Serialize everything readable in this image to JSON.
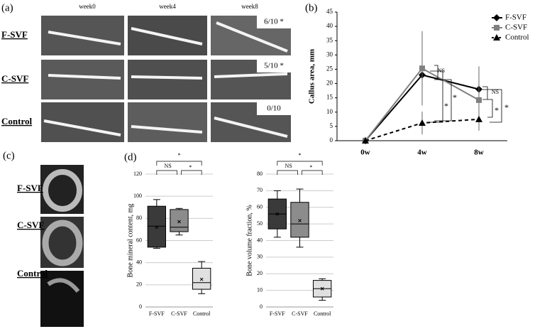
{
  "panel_a": {
    "label": "(a)",
    "columns": [
      "week0",
      "week4",
      "week8"
    ],
    "rows": [
      {
        "label": "F-SVF",
        "score": "6/10 *"
      },
      {
        "label": "C-SVF",
        "score": "5/10 *"
      },
      {
        "label": "Control",
        "score": "0/10"
      }
    ]
  },
  "panel_b_label": "(b)",
  "panel_c": {
    "label": "(c)",
    "rows": [
      "F-SVF",
      "C-SVF",
      "Control"
    ]
  },
  "panel_d_label": "(d)",
  "chart_data": [
    {
      "type": "line",
      "y_label": "Callus area, mm",
      "categories": [
        "0w",
        "4w",
        "8w"
      ],
      "ylim": [
        0,
        45
      ],
      "yticks": [
        0,
        5,
        10,
        15,
        20,
        25,
        30,
        35,
        40,
        45
      ],
      "series": [
        {
          "name": "F-SVF",
          "color": "#000000",
          "marker": "diamond",
          "dashed": false,
          "values": [
            0,
            23,
            18
          ],
          "errors": [
            0,
            10,
            8
          ]
        },
        {
          "name": "C-SVF",
          "color": "#808080",
          "marker": "square",
          "dashed": false,
          "values": [
            0,
            25.3,
            14.2
          ],
          "errors": [
            0,
            13,
            6
          ]
        },
        {
          "name": "Control",
          "color": "#000000",
          "marker": "triangle",
          "dashed": true,
          "values": [
            0,
            6.2,
            7.5
          ],
          "errors": [
            0,
            4,
            4
          ]
        }
      ],
      "annotations": [
        "NS",
        "*",
        "*",
        "NS",
        "*",
        "*"
      ]
    },
    {
      "type": "box",
      "y_label": "Bone mineral content, mg",
      "categories": [
        "F-SVF",
        "C-SVF",
        "Control"
      ],
      "ylim": [
        0,
        120
      ],
      "yticks": [
        0,
        20,
        40,
        60,
        80,
        100,
        120
      ],
      "grid": true,
      "colors": [
        "#3a3a3a",
        "#8c8c8c",
        "#e0e0e0"
      ],
      "boxes": [
        {
          "min": 53,
          "q1": 54,
          "median": 73,
          "q3": 91,
          "max": 97,
          "mean": 72
        },
        {
          "min": 65,
          "q1": 68,
          "median": 72,
          "q3": 88,
          "max": 89,
          "mean": 77
        },
        {
          "min": 12,
          "q1": 16,
          "median": 22,
          "q3": 35,
          "max": 41,
          "mean": 25
        }
      ],
      "annotations": [
        "*",
        "NS",
        "*"
      ]
    },
    {
      "type": "box",
      "y_label": "Bone volume fraction, %",
      "categories": [
        "F-SVF",
        "C-SVF",
        "Control"
      ],
      "ylim": [
        0,
        80
      ],
      "yticks": [
        0,
        10,
        20,
        30,
        40,
        50,
        60,
        70,
        80
      ],
      "grid": true,
      "colors": [
        "#3a3a3a",
        "#8c8c8c",
        "#e0e0e0"
      ],
      "boxes": [
        {
          "min": 42,
          "q1": 47,
          "median": 56,
          "q3": 65,
          "max": 70,
          "mean": 56
        },
        {
          "min": 36,
          "q1": 42,
          "median": 50,
          "q3": 63,
          "max": 71,
          "mean": 52
        },
        {
          "min": 4,
          "q1": 6,
          "median": 11,
          "q3": 16,
          "max": 17,
          "mean": 11
        }
      ],
      "annotations": [
        "*",
        "NS",
        "*"
      ]
    }
  ]
}
